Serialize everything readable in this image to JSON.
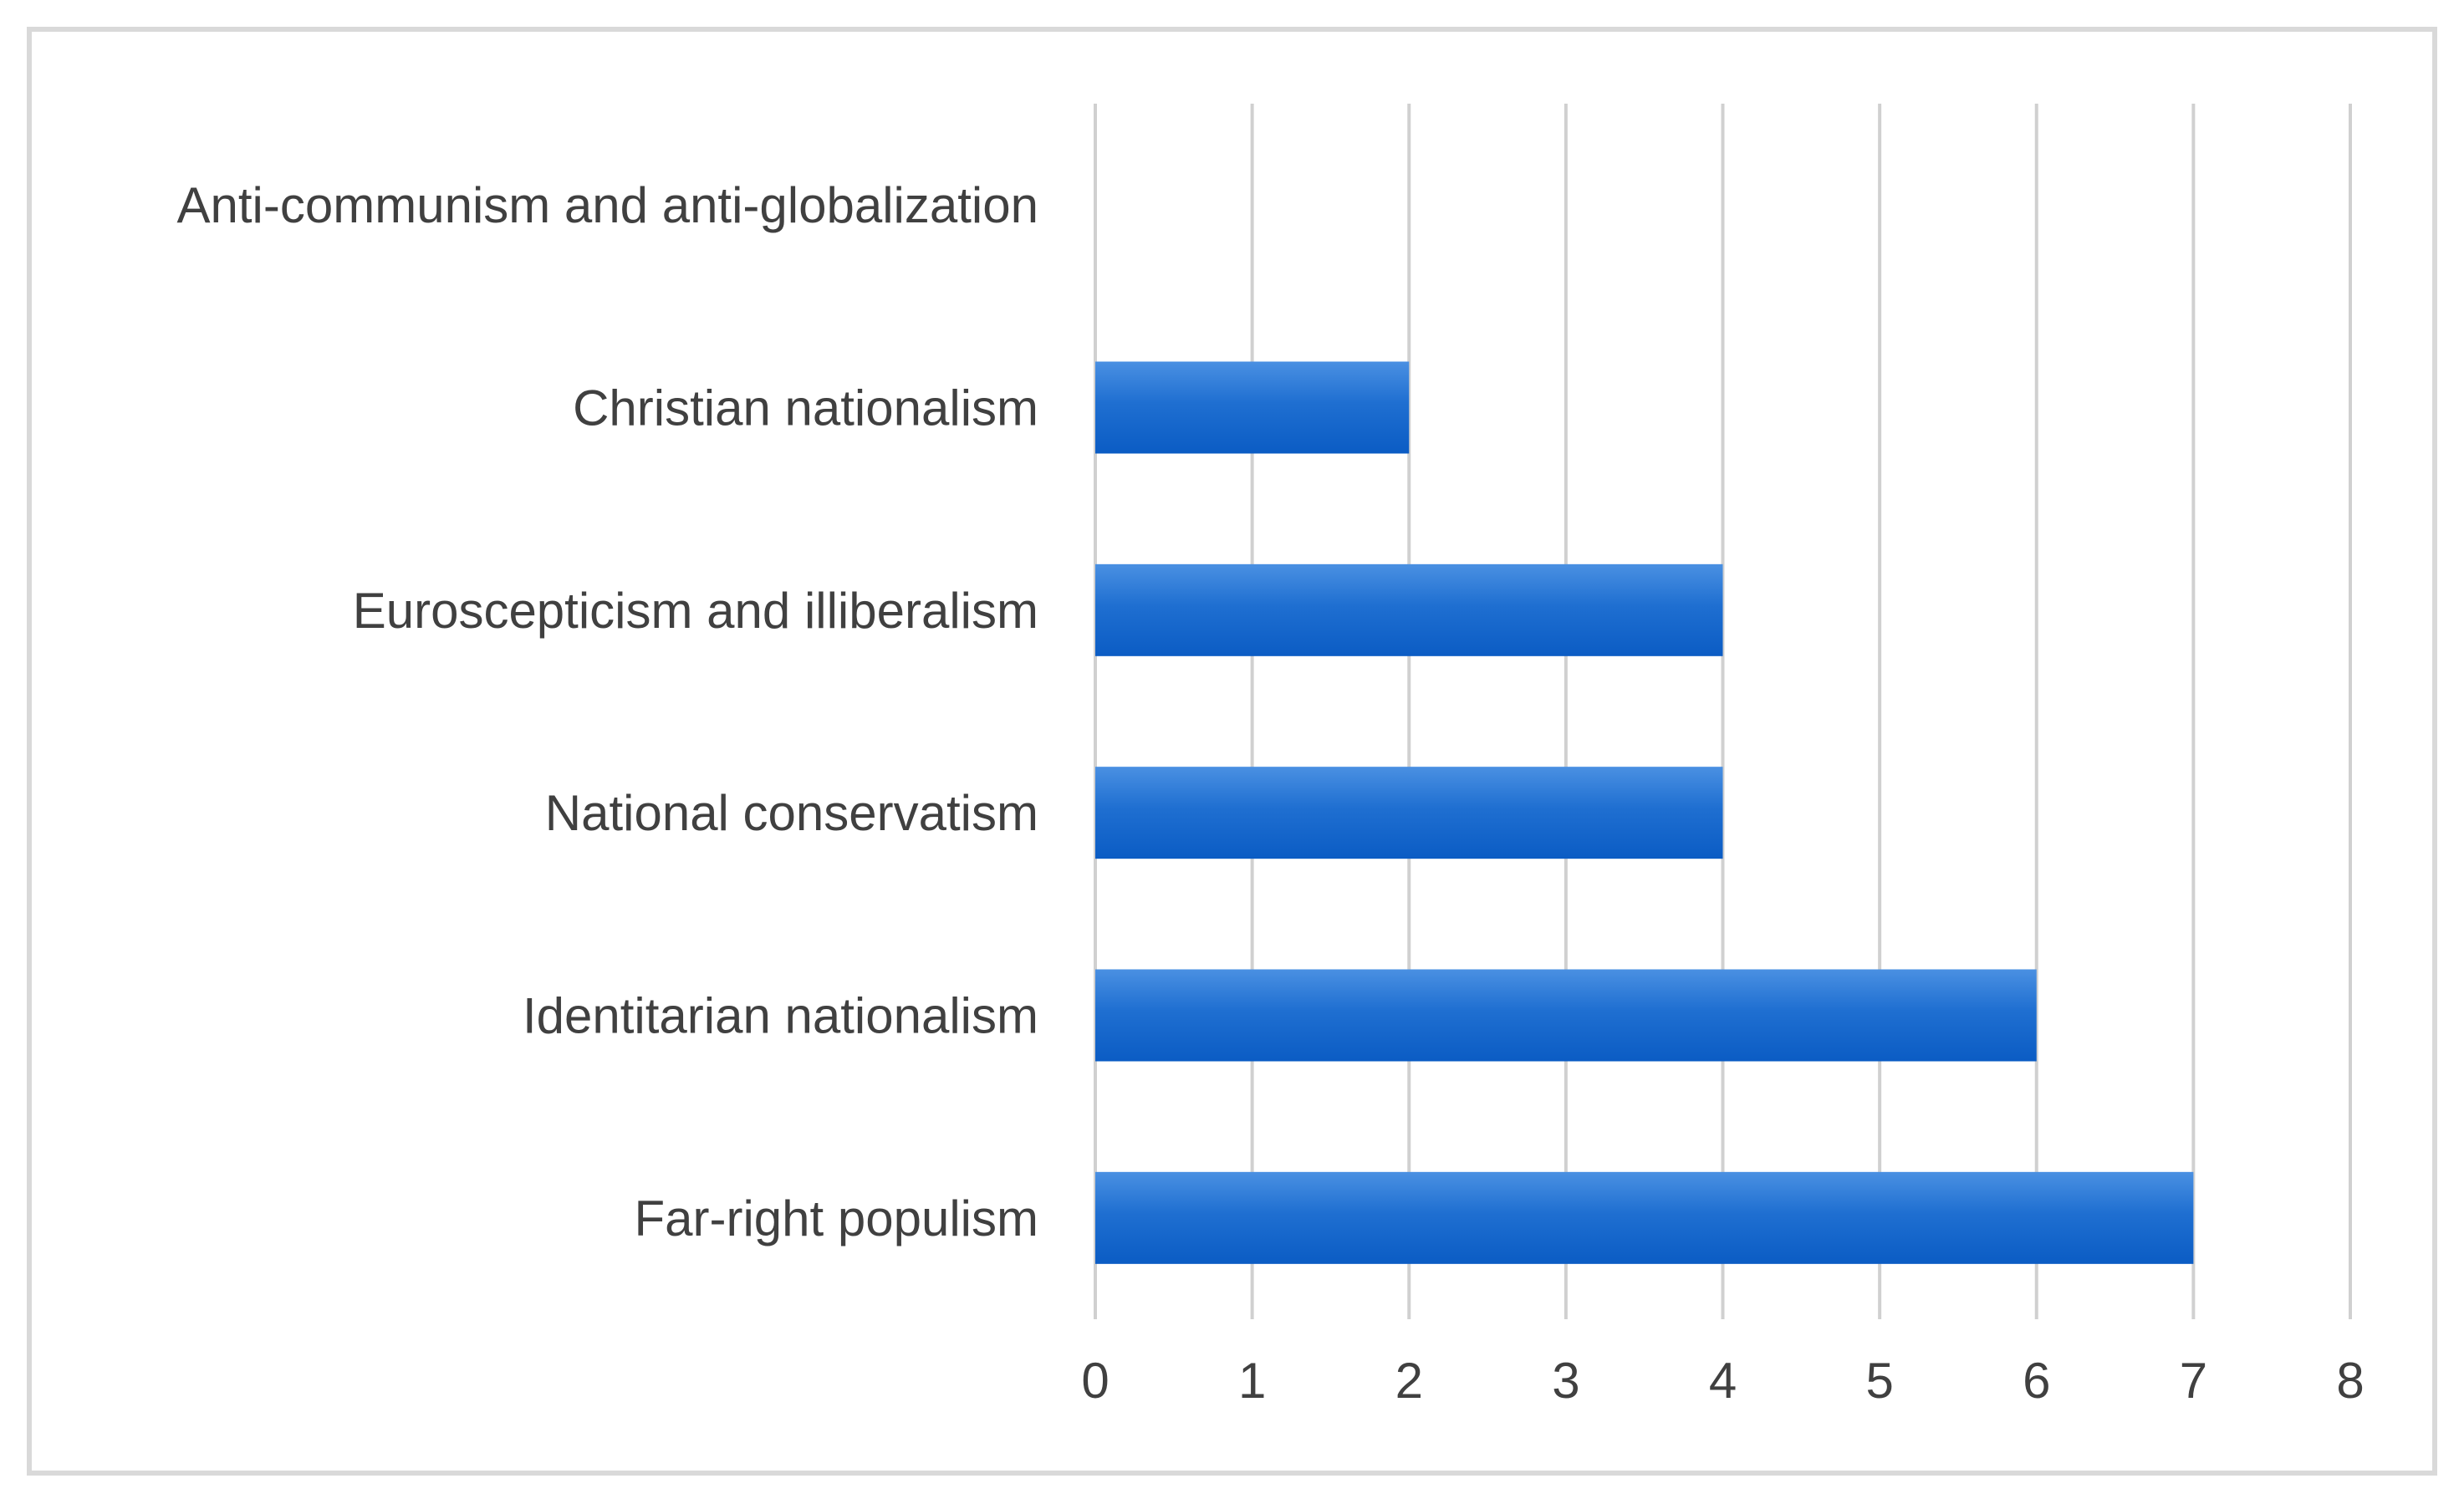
{
  "chart_data": {
    "type": "bar",
    "orientation": "horizontal",
    "categories": [
      "Anti-communism and anti-globalization",
      "Christian nationalism",
      "Euroscepticism and illiberalism",
      "National conservatism",
      "Identitarian nationalism",
      "Far-right populism"
    ],
    "values": [
      0,
      2,
      4,
      4,
      6,
      7
    ],
    "xlim": [
      0,
      8
    ],
    "xticks": [
      "0",
      "1",
      "2",
      "3",
      "4",
      "5",
      "6",
      "7",
      "8"
    ],
    "grid": "vertical",
    "legend": "none",
    "bar_color": "#1f6fd1"
  }
}
